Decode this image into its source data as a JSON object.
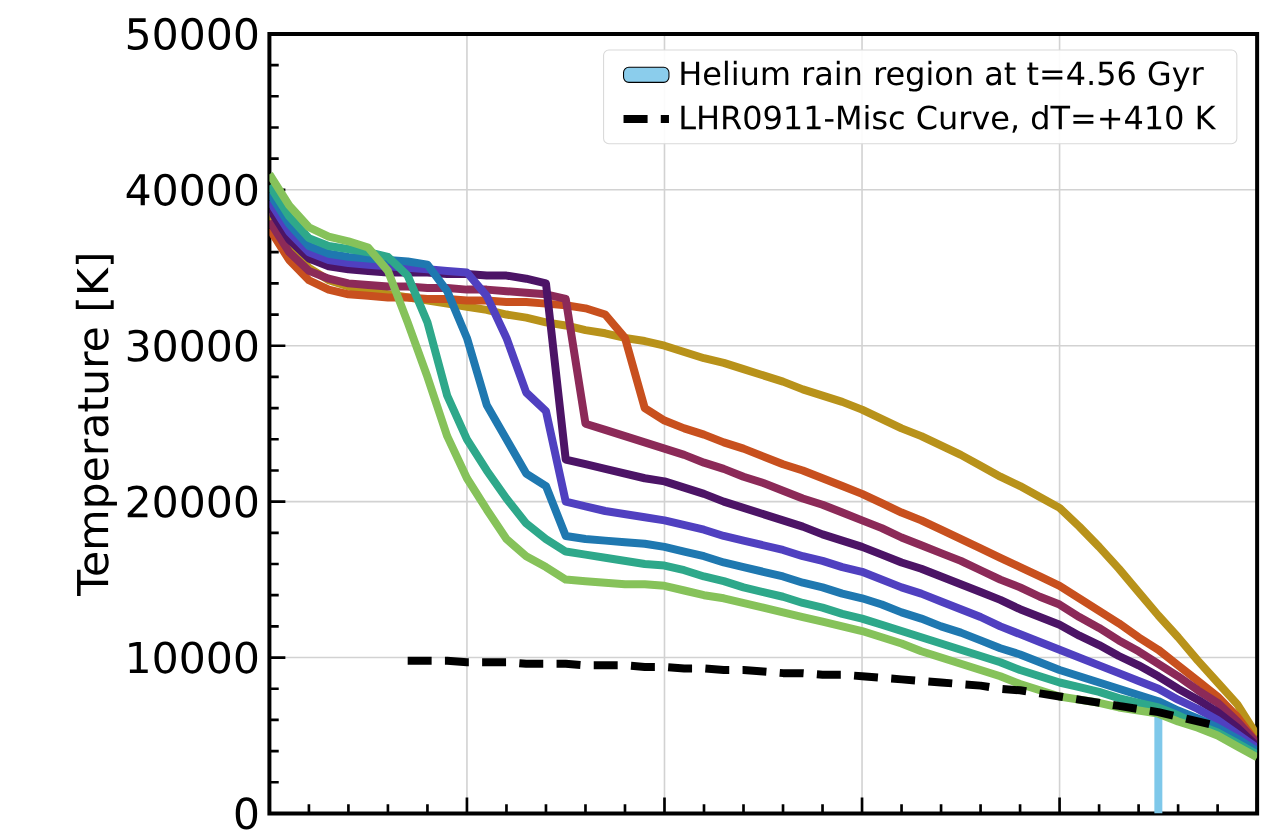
{
  "chart_data": {
    "type": "line",
    "ylabel": "Temperature [K]",
    "ylim": [
      0,
      50000
    ],
    "yticks": [
      0,
      10000,
      20000,
      30000,
      40000,
      50000
    ],
    "grid": true,
    "legend": "top right",
    "tick_labels": "y",
    "categories": [
      null,
      null,
      null,
      null,
      null,
      null,
      null,
      null,
      null,
      null,
      null,
      null,
      null,
      null,
      null,
      null,
      null,
      null,
      null,
      null,
      null,
      null,
      null,
      null,
      null,
      null,
      null,
      null,
      null,
      null,
      null,
      null,
      null,
      null,
      null,
      null,
      null,
      null,
      null,
      null,
      null,
      null,
      null,
      null,
      null,
      null,
      null,
      null,
      null,
      null,
      null
    ],
    "series": [
      {
        "name": "Helium rain region at t=4.56 Gyr",
        "type": "bar",
        "color": "#7ec8ea",
        "values": [
          null,
          null,
          null,
          null,
          null,
          null,
          null,
          null,
          null,
          null,
          null,
          null,
          null,
          null,
          null,
          null,
          null,
          null,
          null,
          null,
          null,
          null,
          null,
          null,
          null,
          null,
          null,
          null,
          null,
          null,
          null,
          null,
          null,
          null,
          null,
          null,
          null,
          null,
          null,
          null,
          null,
          null,
          null,
          null,
          null,
          6500,
          null,
          null,
          null,
          null,
          null
        ]
      },
      {
        "color": "#b8921a",
        "values": [
          38500,
          36500,
          35000,
          34200,
          33800,
          33500,
          33300,
          33100,
          32900,
          32700,
          32500,
          32300,
          32000,
          31800,
          31500,
          31300,
          31000,
          30800,
          30500,
          30300,
          30000,
          29600,
          29200,
          28900,
          28500,
          28100,
          27700,
          27200,
          26800,
          26400,
          25900,
          25300,
          24700,
          24200,
          23600,
          23000,
          22300,
          21600,
          21000,
          20300,
          19600,
          18400,
          17100,
          15700,
          14200,
          12700,
          11300,
          9800,
          8400,
          7000,
          5000
        ]
      },
      {
        "color": "#c8501e",
        "values": [
          37500,
          35500,
          34200,
          33600,
          33300,
          33200,
          33100,
          33100,
          33000,
          33000,
          32900,
          32900,
          32800,
          32800,
          32700,
          32600,
          32400,
          32000,
          30500,
          26000,
          25200,
          24700,
          24300,
          23800,
          23400,
          22900,
          22400,
          22000,
          21500,
          21000,
          20500,
          19900,
          19300,
          18800,
          18200,
          17600,
          17000,
          16400,
          15800,
          15200,
          14600,
          13800,
          13000,
          12200,
          11300,
          10500,
          9500,
          8500,
          7500,
          6200,
          4500
        ]
      },
      {
        "color": "#8c2a58",
        "values": [
          38000,
          36000,
          34800,
          34300,
          34000,
          33900,
          33800,
          33800,
          33700,
          33700,
          33600,
          33600,
          33500,
          33400,
          33300,
          33000,
          25000,
          24600,
          24200,
          23800,
          23400,
          23000,
          22500,
          22100,
          21600,
          21200,
          20700,
          20200,
          19800,
          19300,
          18800,
          18300,
          17700,
          17200,
          16700,
          16200,
          15600,
          15000,
          14500,
          13900,
          13400,
          12600,
          11900,
          11100,
          10400,
          9600,
          8800,
          7900,
          7100,
          5900,
          4500
        ]
      },
      {
        "color": "#4c1466",
        "values": [
          38800,
          36800,
          35600,
          35100,
          34900,
          34800,
          34700,
          34700,
          34700,
          34600,
          34600,
          34500,
          34500,
          34300,
          34000,
          22700,
          22400,
          22100,
          21800,
          21500,
          21300,
          20900,
          20500,
          20000,
          19600,
          19200,
          18800,
          18400,
          17900,
          17500,
          17100,
          16600,
          16100,
          15700,
          15200,
          14700,
          14200,
          13700,
          13100,
          12600,
          12100,
          11400,
          10800,
          10100,
          9500,
          8800,
          8000,
          7300,
          6500,
          5500,
          4300
        ]
      },
      {
        "color": "#5040c0",
        "values": [
          39300,
          37300,
          36000,
          35500,
          35300,
          35200,
          35100,
          35000,
          34900,
          34800,
          34700,
          33200,
          30500,
          27000,
          25800,
          20000,
          19700,
          19400,
          19200,
          19000,
          18800,
          18500,
          18200,
          17800,
          17500,
          17200,
          16900,
          16500,
          16200,
          15800,
          15500,
          15000,
          14500,
          14100,
          13600,
          13100,
          12600,
          12000,
          11500,
          11000,
          10500,
          10000,
          9500,
          9000,
          8500,
          8000,
          7300,
          6700,
          6000,
          5100,
          4200
        ]
      },
      {
        "color": "#1f78b0",
        "values": [
          39800,
          37800,
          36400,
          35900,
          35700,
          35600,
          35500,
          35400,
          35200,
          33500,
          30500,
          26200,
          24000,
          21800,
          21000,
          17800,
          17600,
          17500,
          17400,
          17300,
          17100,
          16800,
          16500,
          16100,
          15800,
          15500,
          15200,
          14800,
          14500,
          14100,
          13800,
          13400,
          12900,
          12500,
          12000,
          11600,
          11100,
          10600,
          10200,
          9700,
          9200,
          8800,
          8400,
          8000,
          7600,
          7200,
          6600,
          6100,
          5500,
          4800,
          4000
        ]
      },
      {
        "color": "#2ea88a",
        "values": [
          40300,
          38300,
          36900,
          36400,
          36200,
          36000,
          35700,
          34500,
          31500,
          26800,
          24000,
          22000,
          20200,
          18600,
          17600,
          16800,
          16600,
          16400,
          16200,
          16000,
          15900,
          15600,
          15200,
          14900,
          14500,
          14200,
          13900,
          13500,
          13200,
          12800,
          12500,
          12100,
          11700,
          11300,
          10900,
          10500,
          10100,
          9700,
          9200,
          8800,
          8400,
          8100,
          7800,
          7400,
          7100,
          6800,
          6300,
          5700,
          5200,
          4500,
          3800
        ]
      },
      {
        "color": "#86c25a",
        "values": [
          41000,
          39000,
          37600,
          37000,
          36700,
          36300,
          34800,
          31500,
          28000,
          24200,
          21500,
          19500,
          17600,
          16500,
          15800,
          15000,
          14900,
          14800,
          14700,
          14700,
          14600,
          14300,
          14000,
          13800,
          13500,
          13200,
          12900,
          12600,
          12300,
          12000,
          11700,
          11300,
          10900,
          10400,
          10000,
          9600,
          9200,
          8800,
          8300,
          7900,
          7500,
          7300,
          7100,
          6800,
          6600,
          6400,
          5900,
          5500,
          5000,
          4300,
          3600
        ]
      },
      {
        "name": "LHR0911-Misc Curve, dT=+410 K",
        "color": "#000000",
        "line_style": "dashed",
        "values": [
          null,
          null,
          null,
          null,
          null,
          null,
          null,
          9800,
          9800,
          9800,
          9700,
          9700,
          9700,
          9600,
          9600,
          9600,
          9500,
          9500,
          9500,
          9400,
          9400,
          9300,
          9300,
          9200,
          9200,
          9100,
          9000,
          9000,
          8900,
          8900,
          8800,
          8700,
          8600,
          8500,
          8400,
          8300,
          8200,
          8000,
          7900,
          7700,
          7500,
          7300,
          7100,
          6900,
          6700,
          6500,
          6200,
          5900,
          5600,
          null,
          null
        ]
      }
    ]
  }
}
